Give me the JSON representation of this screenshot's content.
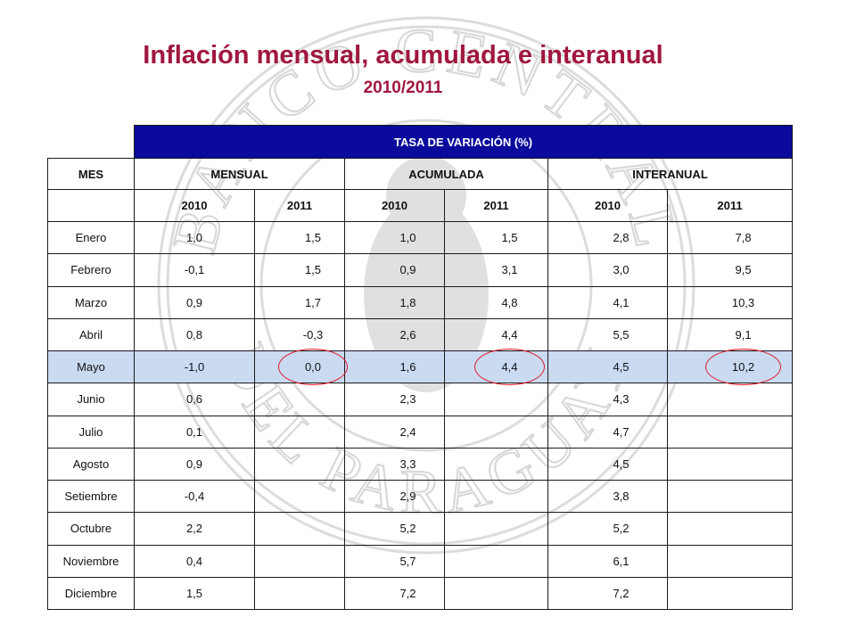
{
  "title": "Inflación mensual, acumulada e interanual",
  "subtitle": "2010/2011",
  "table": {
    "banner": "TASA DE VARIACIÓN (%)",
    "col_mes": "MES",
    "groups": [
      "MENSUAL",
      "ACUMULADA",
      "INTERANUAL"
    ],
    "years": [
      "2010",
      "2011",
      "2010",
      "2011",
      "2010",
      "2011"
    ],
    "rows": [
      {
        "mes": "Enero",
        "values": [
          "1,0",
          "1,5",
          "1,0",
          "1,5",
          "2,8",
          "7,8"
        ]
      },
      {
        "mes": "Febrero",
        "values": [
          "-0,1",
          "1,5",
          "0,9",
          "3,1",
          "3,0",
          "9,5"
        ]
      },
      {
        "mes": "Marzo",
        "values": [
          "0,9",
          "1,7",
          "1,8",
          "4,8",
          "4,1",
          "10,3"
        ]
      },
      {
        "mes": "Abril",
        "values": [
          "0,8",
          "-0,3",
          "2,6",
          "4,4",
          "5,5",
          "9,1"
        ]
      },
      {
        "mes": "Mayo",
        "values": [
          "-1,0",
          "0,0",
          "1,6",
          "4,4",
          "4,5",
          "10,2"
        ]
      },
      {
        "mes": "Junio",
        "values": [
          "0,6",
          "",
          "2,3",
          "",
          "4,3",
          ""
        ]
      },
      {
        "mes": "Julio",
        "values": [
          "0,1",
          "",
          "2,4",
          "",
          "4,7",
          ""
        ]
      },
      {
        "mes": "Agosto",
        "values": [
          "0,9",
          "",
          "3,3",
          "",
          "4,5",
          ""
        ]
      },
      {
        "mes": "Setiembre",
        "values": [
          "-0,4",
          "",
          "2,9",
          "",
          "3,8",
          ""
        ]
      },
      {
        "mes": "Octubre",
        "values": [
          "2,2",
          "",
          "5,2",
          "",
          "5,2",
          ""
        ]
      },
      {
        "mes": "Noviembre",
        "values": [
          "0,4",
          "",
          "5,7",
          "",
          "6,1",
          ""
        ]
      },
      {
        "mes": "Diciembre",
        "values": [
          "1,5",
          "",
          "7,2",
          "",
          "7,2",
          ""
        ]
      }
    ],
    "highlight_color": "#c9daf1",
    "circle_color": "#e01a2a"
  },
  "watermark": {
    "icon": "central-bank-seal-icon",
    "text": "BANCO CENTRAL DEL PARAGUAY",
    "color": "#d9d9d9"
  }
}
